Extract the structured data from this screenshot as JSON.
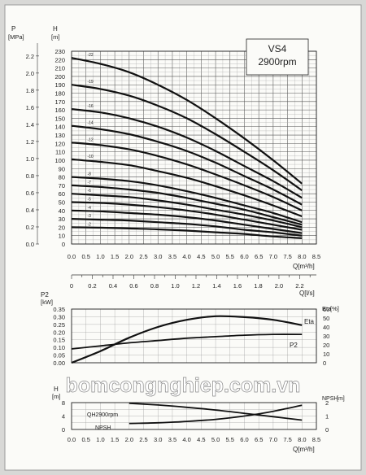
{
  "chart_data": [
    {
      "type": "line",
      "title": "VS4",
      "subtitle": "2900rpm",
      "left_axis": {
        "label": "P",
        "unit": "[MPa]",
        "ticks": [
          "0.0",
          "0.2",
          "0.4",
          "0.6",
          "0.8",
          "1.0",
          "1.2",
          "1.4",
          "1.6",
          "1.8",
          "2.0",
          "2.2"
        ]
      },
      "ylabel": "H",
      "yunit": "[m]",
      "yticks": [
        0,
        10,
        20,
        30,
        40,
        50,
        60,
        70,
        80,
        90,
        100,
        110,
        120,
        130,
        140,
        150,
        160,
        170,
        180,
        190,
        200,
        210,
        220,
        230
      ],
      "ylim": [
        0,
        230
      ],
      "xlabel": "Q[m³/h]",
      "xticks": [
        "0.0",
        "0.5",
        "1.0",
        "1.5",
        "2.0",
        "2.5",
        "3.0",
        "3.5",
        "4.0",
        "4.5",
        "5.0",
        "5.5",
        "6.0",
        "6.5",
        "7.0",
        "7.5",
        "8.0",
        "8.5"
      ],
      "xlim": [
        0,
        8.5
      ],
      "x": [
        0,
        1,
        2,
        3,
        4,
        5,
        6,
        7,
        8
      ],
      "series": [
        {
          "name": "-22",
          "values": [
            222,
            215,
            205,
            190,
            172,
            150,
            126,
            100,
            72
          ]
        },
        {
          "name": "-19",
          "values": [
            190,
            185,
            177,
            165,
            150,
            131,
            110,
            88,
            64
          ]
        },
        {
          "name": "-16",
          "values": [
            161,
            157,
            150,
            140,
            127,
            111,
            93,
            75,
            55
          ]
        },
        {
          "name": "-14",
          "values": [
            141,
            137,
            131,
            122,
            111,
            97,
            81,
            65,
            47
          ]
        },
        {
          "name": "-12",
          "values": [
            121,
            118,
            113,
            105,
            95,
            83,
            70,
            56,
            40
          ]
        },
        {
          "name": "-10",
          "values": [
            101,
            98,
            94,
            87,
            79,
            69,
            58,
            46,
            33
          ]
        },
        {
          "name": "-8",
          "values": [
            80,
            78,
            75,
            70,
            63,
            55,
            46,
            37,
            26
          ]
        },
        {
          "name": "-7",
          "values": [
            70,
            68,
            65,
            61,
            55,
            48,
            41,
            32,
            23
          ]
        },
        {
          "name": "-6",
          "values": [
            60,
            58,
            56,
            52,
            47,
            41,
            35,
            28,
            20
          ]
        },
        {
          "name": "-5",
          "values": [
            50,
            49,
            47,
            44,
            40,
            35,
            29,
            23,
            17
          ]
        },
        {
          "name": "-4",
          "values": [
            40,
            39,
            37,
            35,
            32,
            28,
            23,
            18,
            13
          ]
        },
        {
          "name": "-3",
          "values": [
            30,
            29,
            28,
            26,
            24,
            21,
            17,
            14,
            10
          ]
        },
        {
          "name": "-2",
          "values": [
            20,
            19.5,
            18.5,
            17.5,
            16,
            14,
            12,
            9,
            7
          ]
        }
      ],
      "x2_axis": {
        "label": "Q[l/s]",
        "ticks": [
          "0",
          "0.2",
          "0.4",
          "0.6",
          "0.8",
          "1.0",
          "1.2",
          "1.4",
          "1.6",
          "1.8",
          "2.0",
          "2.2"
        ]
      }
    },
    {
      "type": "line",
      "ylabel": "P2",
      "yunit": "[kW]",
      "yticks": [
        "0.00",
        "0.05",
        "0.10",
        "0.15",
        "0.20",
        "0.25",
        "0.30",
        "0.35"
      ],
      "ylim": [
        0,
        0.35
      ],
      "y2label": "Eta",
      "y2unit": "[%]",
      "y2ticks": [
        "0",
        "10",
        "20",
        "30",
        "40",
        "50",
        "60"
      ],
      "y2lim": [
        0,
        60
      ],
      "x": [
        0,
        1,
        2,
        3,
        4,
        5,
        6,
        7,
        8
      ],
      "series": [
        {
          "name": "Eta",
          "axis": "right",
          "values": [
            0,
            13,
            28,
            40,
            48,
            52,
            51,
            48,
            42
          ]
        },
        {
          "name": "P2",
          "axis": "left",
          "values": [
            0.09,
            0.11,
            0.13,
            0.145,
            0.16,
            0.17,
            0.18,
            0.185,
            0.185
          ]
        }
      ]
    },
    {
      "type": "line",
      "ylabel": "H",
      "yunit": "[m]",
      "yticks": [
        "0",
        "4",
        "8"
      ],
      "ylim": [
        0,
        8
      ],
      "y2label": "NPSH",
      "y2unit": "[m]",
      "y2ticks": [
        "0",
        "1",
        "2"
      ],
      "y2lim": [
        0,
        2
      ],
      "xlabel": "Q[m³/h]",
      "xticks": [
        "0.0",
        "0.5",
        "1.0",
        "1.5",
        "2.0",
        "2.5",
        "3.0",
        "3.5",
        "4.0",
        "4.5",
        "5.0",
        "5.5",
        "6.0",
        "6.5",
        "7.0",
        "7.5",
        "8.0",
        "8.5"
      ],
      "x": [
        2,
        3,
        4,
        5,
        6,
        7,
        8
      ],
      "series": [
        {
          "name": "QH2900rpm",
          "axis": "left",
          "values": [
            7.8,
            7.3,
            6.6,
            5.8,
            4.8,
            3.8,
            2.8
          ]
        },
        {
          "name": "NPSH",
          "axis": "right",
          "values": [
            0.45,
            0.5,
            0.6,
            0.75,
            1.0,
            1.35,
            1.8
          ]
        }
      ]
    }
  ],
  "watermark": "bomcongnghiep.com.vn"
}
